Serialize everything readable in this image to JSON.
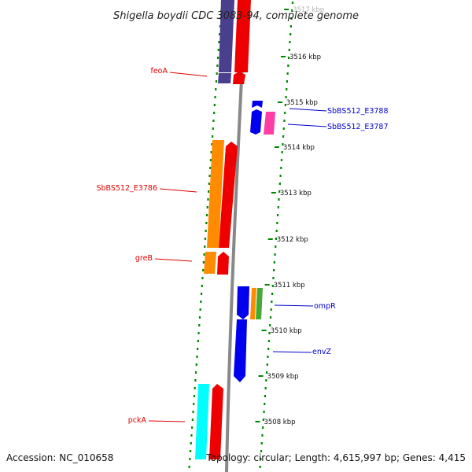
{
  "title": "Shigella boydii CDC 3083-94, complete genome",
  "footer": {
    "accession": "Accession: NC_010658",
    "summary": "Topology: circular; Length: 4,615,997 bp; Genes: 4,415"
  },
  "colors": {
    "label_forward": "#0000cc",
    "label_reverse": "#dd0000",
    "tick": "#008800",
    "backbone": "#888888"
  },
  "ticks": [
    {
      "label": "3517 kbp"
    },
    {
      "label": "3516 kbp"
    },
    {
      "label": "3515 kbp"
    },
    {
      "label": "3514 kbp"
    },
    {
      "label": "3513 kbp"
    },
    {
      "label": "3512 kbp"
    },
    {
      "label": "3511 kbp"
    },
    {
      "label": "3510 kbp"
    },
    {
      "label": "3509 kbp"
    },
    {
      "label": "3508 kbp"
    }
  ],
  "gene_labels": [
    {
      "name": "feoA",
      "strand": "reverse"
    },
    {
      "name": "SbBS512_E3788",
      "strand": "forward"
    },
    {
      "name": "SbBS512_E3787",
      "strand": "forward"
    },
    {
      "name": "SbBS512_E3786",
      "strand": "reverse"
    },
    {
      "name": "greB",
      "strand": "reverse"
    },
    {
      "name": "ompR",
      "strand": "forward"
    },
    {
      "name": "envZ",
      "strand": "forward"
    },
    {
      "name": "pckA",
      "strand": "reverse"
    }
  ]
}
